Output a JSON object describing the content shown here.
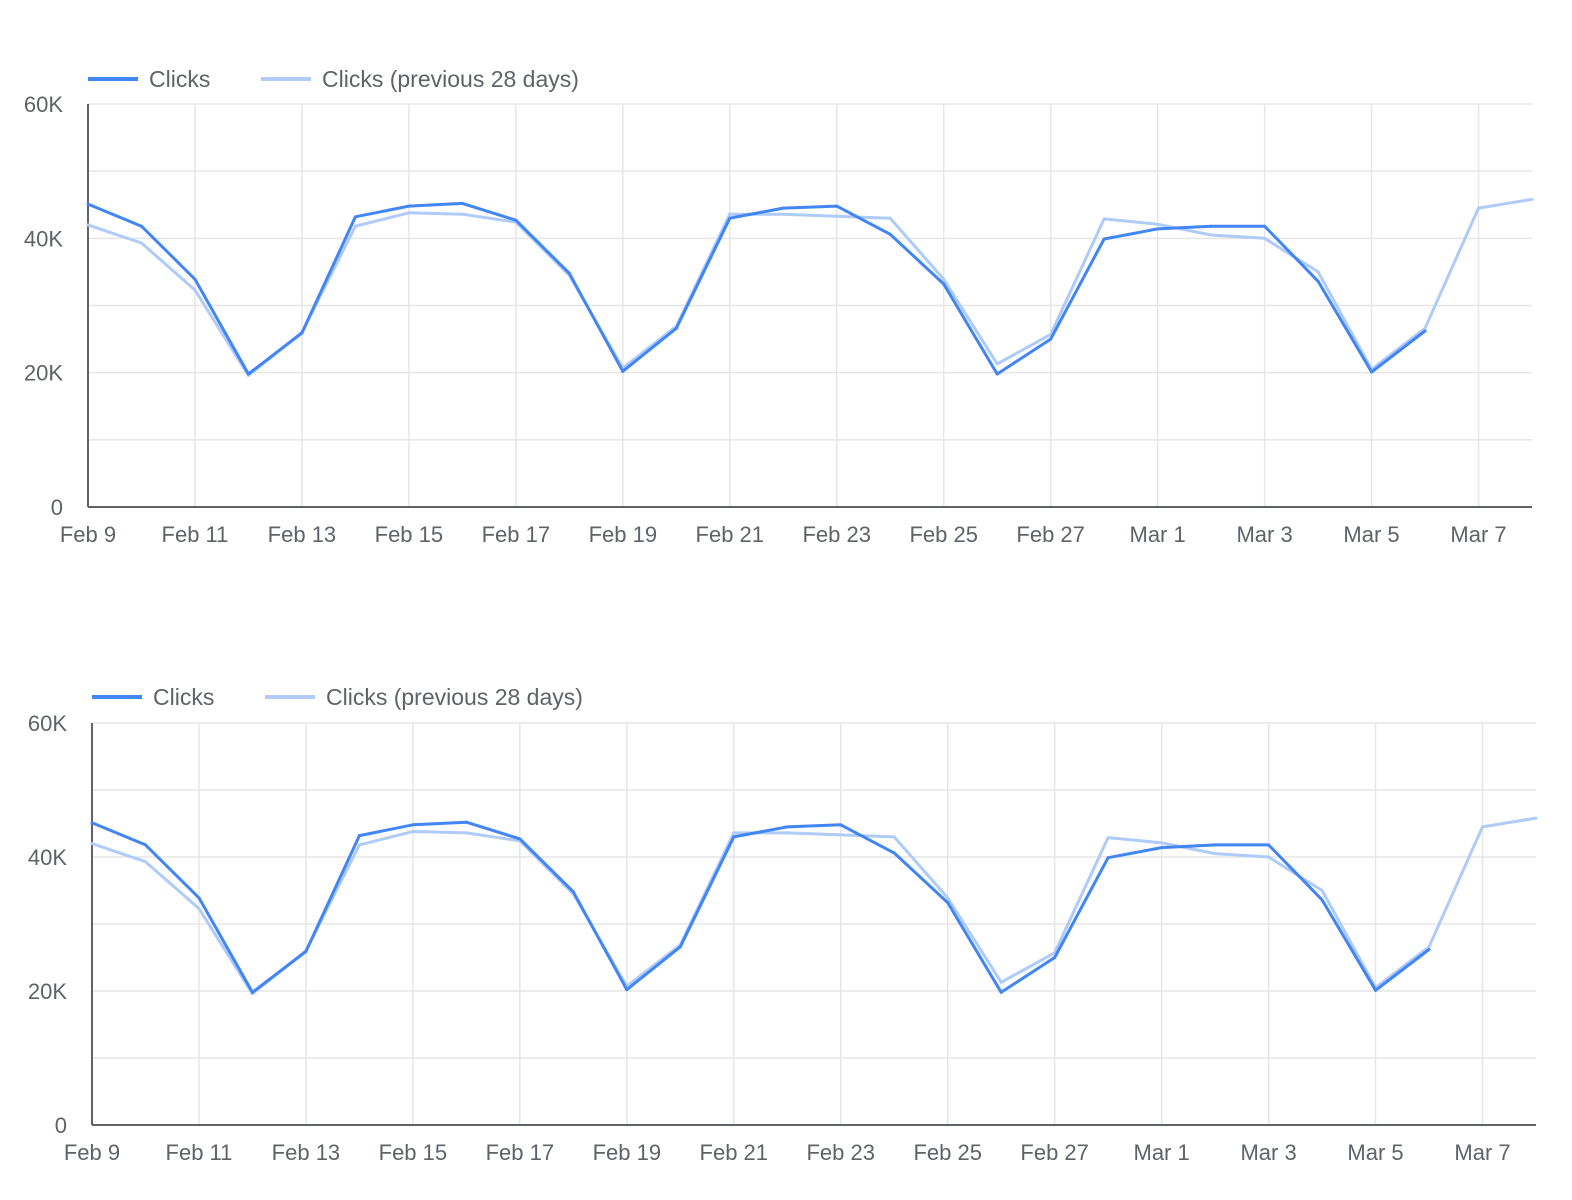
{
  "colors": {
    "current": "#4285f4",
    "previous": "#aecbfa",
    "grid": "#e6e6e6",
    "axis": "#5f6368"
  },
  "chart_data": [
    {
      "type": "line",
      "legend_position": "top-left",
      "grid": true,
      "ylim": [
        0,
        60000
      ],
      "y_ticks": [
        {
          "value": 0,
          "label": "0"
        },
        {
          "value": 20000,
          "label": "20K"
        },
        {
          "value": 40000,
          "label": "40K"
        },
        {
          "value": 60000,
          "label": "60K"
        }
      ],
      "x": [
        "Feb 9",
        "Feb 10",
        "Feb 11",
        "Feb 12",
        "Feb 13",
        "Feb 14",
        "Feb 15",
        "Feb 16",
        "Feb 17",
        "Feb 18",
        "Feb 19",
        "Feb 20",
        "Feb 21",
        "Feb 22",
        "Feb 23",
        "Feb 24",
        "Feb 25",
        "Feb 26",
        "Feb 27",
        "Feb 28",
        "Mar 1",
        "Mar 2",
        "Mar 3",
        "Mar 4",
        "Mar 5",
        "Mar 6",
        "Mar 7",
        "Mar 8"
      ],
      "x_tick_labels": [
        "Feb 9",
        "Feb 11",
        "Feb 13",
        "Feb 15",
        "Feb 17",
        "Feb 19",
        "Feb 21",
        "Feb 23",
        "Feb 25",
        "Feb 27",
        "Mar 1",
        "Mar 3",
        "Mar 5",
        "Mar 7"
      ],
      "series": [
        {
          "name": "Clicks",
          "values": [
            45100,
            41800,
            33900,
            19800,
            25900,
            43200,
            44800,
            45200,
            42700,
            34800,
            20200,
            26600,
            43000,
            44500,
            44800,
            40600,
            33200,
            19800,
            25000,
            39900,
            41400,
            41800,
            41800,
            33600,
            20100,
            26200,
            null,
            null
          ]
        },
        {
          "name": "Clicks (previous 28 days)",
          "values": [
            42000,
            39300,
            32300,
            19600,
            26000,
            41800,
            43800,
            43600,
            42400,
            34500,
            20700,
            26900,
            43600,
            43600,
            43300,
            43000,
            33900,
            21300,
            25700,
            42900,
            42100,
            40500,
            40000,
            35000,
            20500,
            26600,
            44500,
            45800
          ]
        }
      ]
    },
    {
      "type": "line",
      "legend_position": "top-left",
      "grid": true,
      "ylim": [
        0,
        60000
      ],
      "y_ticks": [
        {
          "value": 0,
          "label": "0"
        },
        {
          "value": 20000,
          "label": "20K"
        },
        {
          "value": 40000,
          "label": "40K"
        },
        {
          "value": 60000,
          "label": "60K"
        }
      ],
      "x": [
        "Feb 9",
        "Feb 10",
        "Feb 11",
        "Feb 12",
        "Feb 13",
        "Feb 14",
        "Feb 15",
        "Feb 16",
        "Feb 17",
        "Feb 18",
        "Feb 19",
        "Feb 20",
        "Feb 21",
        "Feb 22",
        "Feb 23",
        "Feb 24",
        "Feb 25",
        "Feb 26",
        "Feb 27",
        "Feb 28",
        "Mar 1",
        "Mar 2",
        "Mar 3",
        "Mar 4",
        "Mar 5",
        "Mar 6",
        "Mar 7",
        "Mar 8"
      ],
      "x_tick_labels": [
        "Feb 9",
        "Feb 11",
        "Feb 13",
        "Feb 15",
        "Feb 17",
        "Feb 19",
        "Feb 21",
        "Feb 23",
        "Feb 25",
        "Feb 27",
        "Mar 1",
        "Mar 3",
        "Mar 5",
        "Mar 7"
      ],
      "series": [
        {
          "name": "Clicks",
          "values": [
            45100,
            41800,
            33900,
            19800,
            25900,
            43200,
            44800,
            45200,
            42700,
            34800,
            20200,
            26600,
            43000,
            44500,
            44800,
            40600,
            33200,
            19800,
            25000,
            39900,
            41400,
            41800,
            41800,
            33600,
            20100,
            26200,
            null,
            null
          ]
        },
        {
          "name": "Clicks (previous 28 days)",
          "values": [
            42000,
            39300,
            32300,
            19600,
            26000,
            41800,
            43800,
            43600,
            42400,
            34500,
            20700,
            26900,
            43600,
            43600,
            43300,
            43000,
            33900,
            21300,
            25700,
            42900,
            42100,
            40500,
            40000,
            35000,
            20500,
            26600,
            44500,
            45800
          ]
        }
      ]
    }
  ]
}
